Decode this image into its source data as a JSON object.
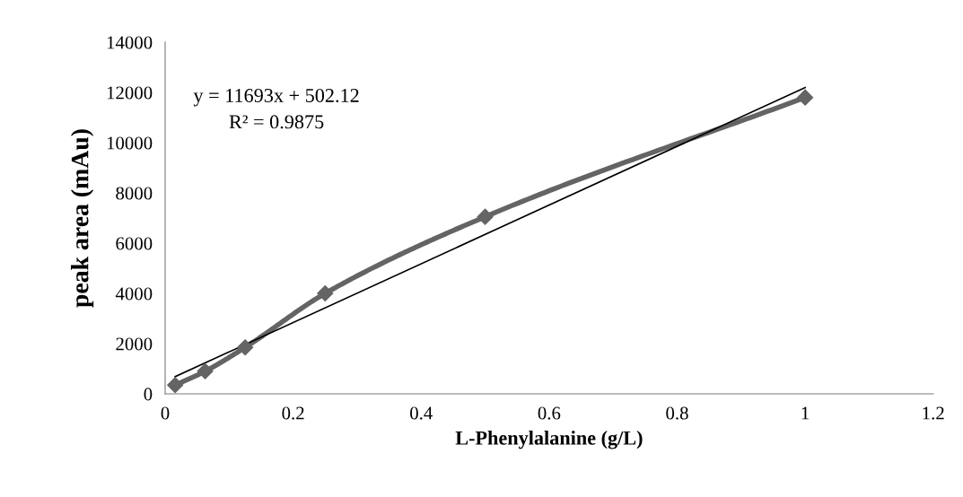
{
  "chart_data": {
    "type": "line",
    "xlabel": "L-Phenylalanine (g/L)",
    "ylabel": "peak area (mAu)",
    "x": [
      0.015625,
      0.0625,
      0.125,
      0.25,
      0.5,
      1
    ],
    "series": [
      {
        "color": "#646464",
        "values": [
          350,
          900,
          1850,
          4000,
          7050,
          11800
        ],
        "marker": "diamond",
        "line_style": "solid"
      },
      {
        "type": "line",
        "color": "#000000",
        "x": [
          0.015625,
          1
        ],
        "values": [
          685,
          12195
        ],
        "marker": "none",
        "line_style": "solid"
      }
    ],
    "annotations": [
      "y = 11693x + 502.12",
      "R² = 0.9875"
    ],
    "xlim": [
      0,
      1.2
    ],
    "xticks": [
      0,
      0.2,
      0.4,
      0.6,
      0.8,
      1,
      1.2
    ],
    "ylim": [
      0,
      14000
    ],
    "yticks": [
      0,
      2000,
      4000,
      6000,
      8000,
      10000,
      12000,
      14000
    ],
    "grid": false,
    "legend": false
  }
}
